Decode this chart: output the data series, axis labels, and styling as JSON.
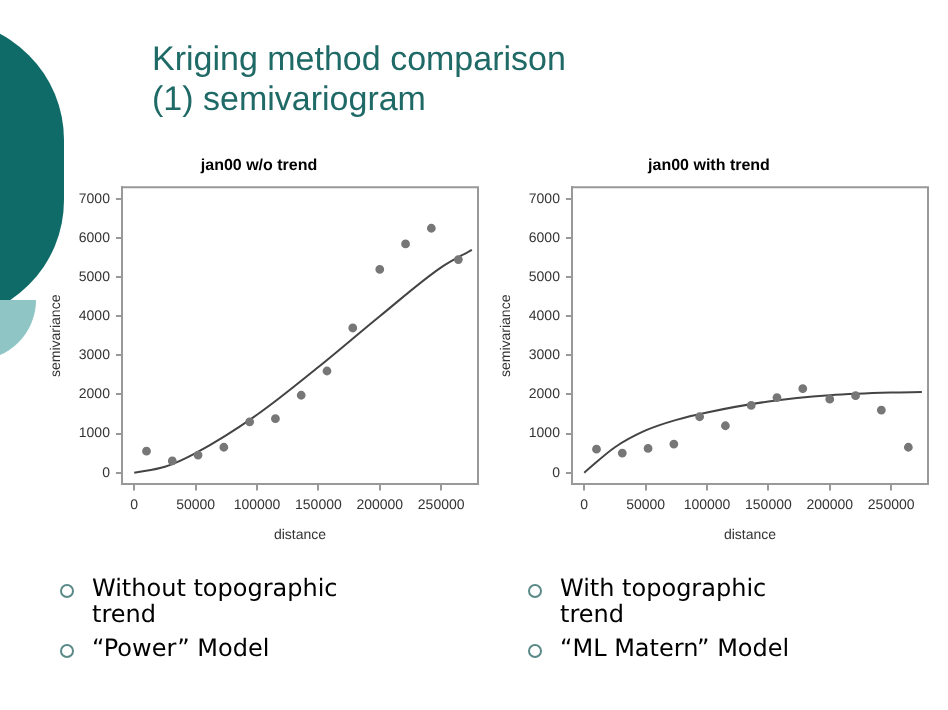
{
  "chart_data": [
    {
      "type": "scatter",
      "title": "jan00 w/o trend",
      "subtitle": "Kriging method comparison\n(1) semivariogram",
      "xlabel": "distance",
      "ylabel": "semivariance",
      "xlim": [
        -10000,
        280000
      ],
      "ylim": [
        -300,
        7300
      ],
      "xticks": [
        0,
        50000,
        100000,
        150000,
        200000,
        250000
      ],
      "yticks": [
        0,
        1000,
        2000,
        3000,
        4000,
        5000,
        6000,
        7000
      ],
      "grid": false,
      "annotations": [
        "Without topographic trend",
        "“Power” Model"
      ],
      "series": [
        {
          "marker": "circle",
          "color": "#777777",
          "x": [
            10000,
            31000,
            52000,
            73000,
            94000,
            115000,
            136000,
            157000,
            178000,
            200000,
            221000,
            242000,
            264000
          ],
          "values": [
            550,
            300,
            450,
            650,
            1300,
            1380,
            1980,
            2600,
            3700,
            5200,
            5850,
            6250,
            5450
          ]
        },
        {
          "type": "line",
          "marker": "none",
          "color": "#444444",
          "x": [
            0,
            25000,
            50000,
            100000,
            150000,
            200000,
            250000,
            275000
          ],
          "values": [
            0,
            150,
            500,
            1480,
            2700,
            4000,
            5250,
            5700
          ]
        }
      ]
    },
    {
      "type": "scatter",
      "title": "jan00 with trend",
      "xlabel": "distance",
      "ylabel": "semivariance",
      "xlim": [
        -10000,
        280000
      ],
      "ylim": [
        -300,
        7300
      ],
      "xticks": [
        0,
        50000,
        100000,
        150000,
        200000,
        250000
      ],
      "yticks": [
        0,
        1000,
        2000,
        3000,
        4000,
        5000,
        6000,
        7000
      ],
      "grid": false,
      "annotations": [
        "With topographic trend",
        "“ML Matern” Model"
      ],
      "series": [
        {
          "marker": "circle",
          "color": "#777777",
          "x": [
            10000,
            31000,
            52000,
            73000,
            94000,
            115000,
            136000,
            157000,
            178000,
            200000,
            221000,
            242000,
            264000
          ],
          "values": [
            600,
            500,
            620,
            730,
            1430,
            1200,
            1720,
            1920,
            2150,
            1880,
            1970,
            1600,
            650
          ]
        },
        {
          "type": "line",
          "marker": "none",
          "color": "#444444",
          "x": [
            0,
            25000,
            50000,
            75000,
            100000,
            150000,
            200000,
            250000,
            275000
          ],
          "values": [
            0,
            650,
            1080,
            1350,
            1540,
            1820,
            1980,
            2050,
            2060
          ]
        }
      ]
    }
  ]
}
